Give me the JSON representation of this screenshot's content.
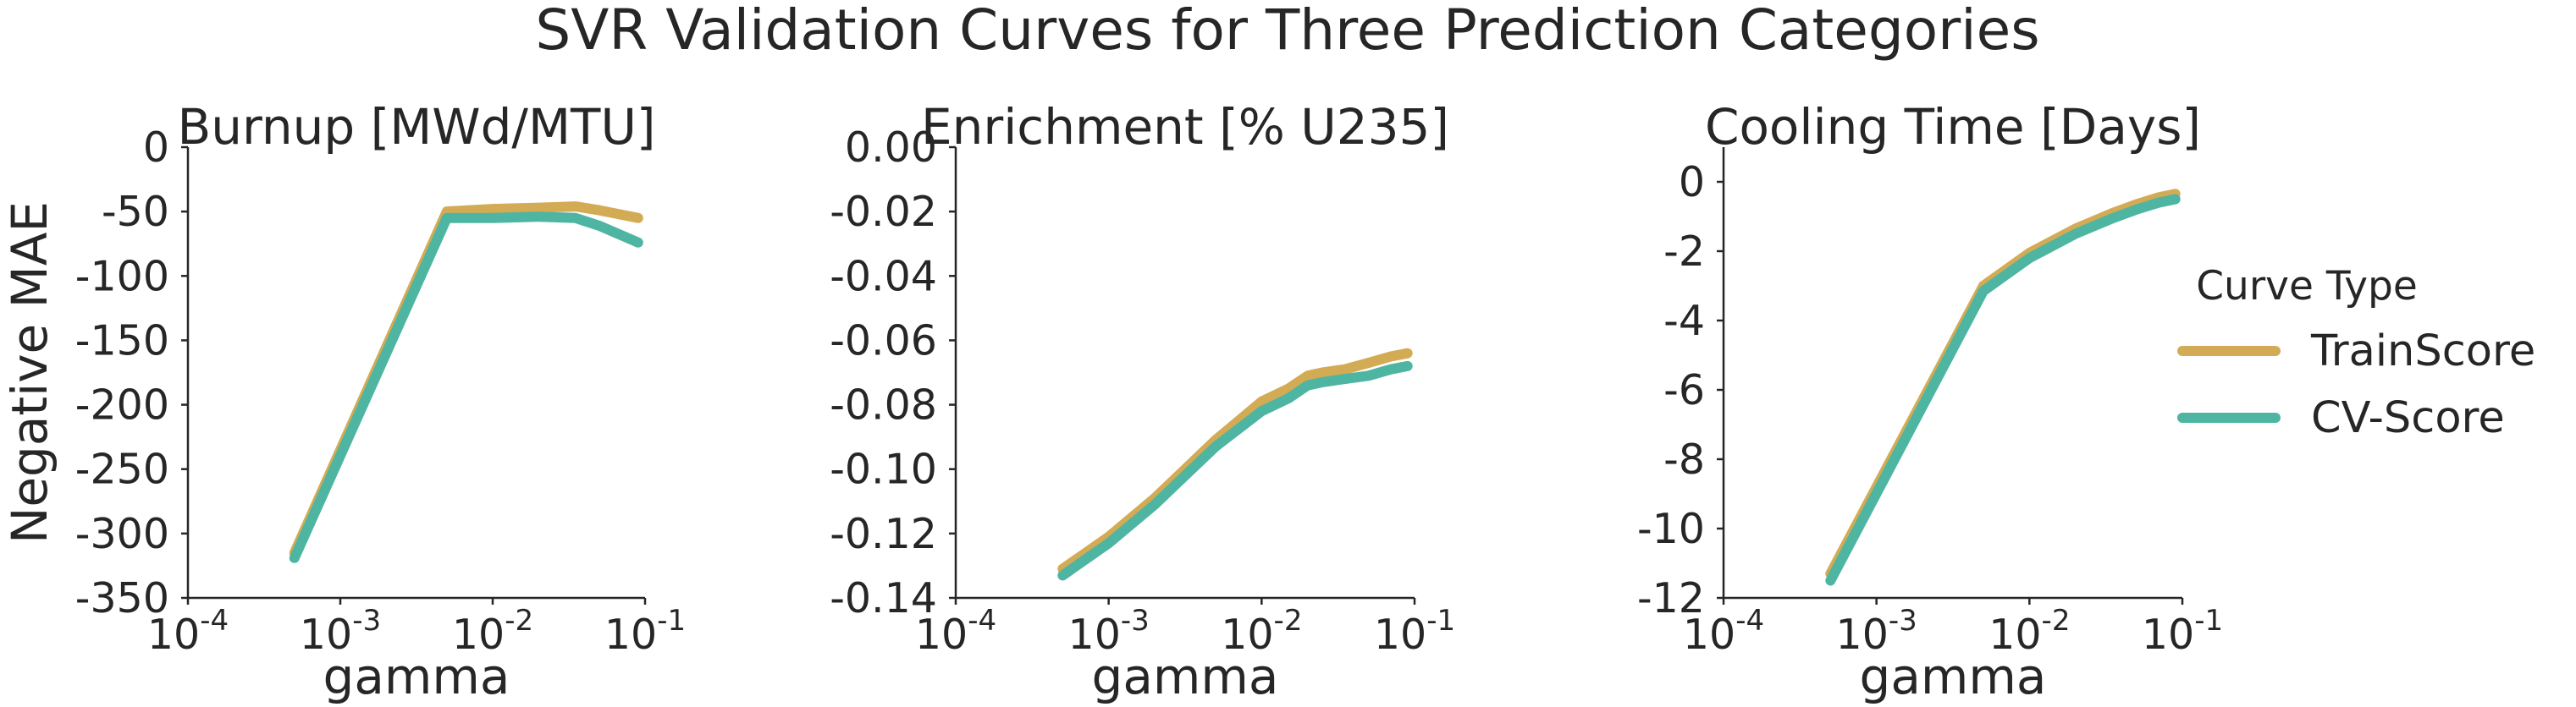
{
  "figure": {
    "title": "SVR Validation Curves for Three Prediction Categories"
  },
  "legend": {
    "title": "Curve Type",
    "entries": [
      {
        "label": "TrainScore",
        "color": "#d4ab55"
      },
      {
        "label": "CV-Score",
        "color": "#4eb5a2"
      }
    ]
  },
  "chart_data": [
    {
      "type": "line",
      "title": "Burnup [MWd/MTU]",
      "xlabel": "gamma",
      "ylabel": "Negative MAE",
      "xscale": "log",
      "xlim": [
        0.0001,
        0.1
      ],
      "ylim": [
        -350,
        0
      ],
      "xticks": [
        {
          "v": 0.0001,
          "base": "10",
          "exp": "-4"
        },
        {
          "v": 0.001,
          "base": "10",
          "exp": "-3"
        },
        {
          "v": 0.01,
          "base": "10",
          "exp": "-2"
        },
        {
          "v": 0.1,
          "base": "10",
          "exp": "-1"
        }
      ],
      "yticks": [
        {
          "v": 0,
          "label": "0"
        },
        {
          "v": -50,
          "label": "-50"
        },
        {
          "v": -100,
          "label": "-100"
        },
        {
          "v": -150,
          "label": "-150"
        },
        {
          "v": -200,
          "label": "-200"
        },
        {
          "v": -250,
          "label": "-250"
        },
        {
          "v": -300,
          "label": "-300"
        },
        {
          "v": -350,
          "label": "-350"
        }
      ],
      "grid": false,
      "series": [
        {
          "name": "TrainScore",
          "color": "#d4ab55",
          "x": [
            0.0005,
            0.005,
            0.01,
            0.02,
            0.035,
            0.05,
            0.09
          ],
          "y": [
            -315,
            -50,
            -48,
            -47,
            -46,
            -49,
            -55
          ]
        },
        {
          "name": "CV-Score",
          "color": "#4eb5a2",
          "x": [
            0.0005,
            0.005,
            0.01,
            0.02,
            0.035,
            0.05,
            0.09
          ],
          "y": [
            -319,
            -55,
            -55,
            -54,
            -55,
            -61,
            -74
          ]
        }
      ]
    },
    {
      "type": "line",
      "title": "Enrichment [% U235]",
      "xlabel": "gamma",
      "ylabel": "",
      "xscale": "log",
      "xlim": [
        0.0001,
        0.1
      ],
      "ylim": [
        -0.14,
        0.0
      ],
      "xticks": [
        {
          "v": 0.0001,
          "base": "10",
          "exp": "-4"
        },
        {
          "v": 0.001,
          "base": "10",
          "exp": "-3"
        },
        {
          "v": 0.01,
          "base": "10",
          "exp": "-2"
        },
        {
          "v": 0.1,
          "base": "10",
          "exp": "-1"
        }
      ],
      "yticks": [
        {
          "v": 0.0,
          "label": "0.00"
        },
        {
          "v": -0.02,
          "label": "-0.02"
        },
        {
          "v": -0.04,
          "label": "-0.04"
        },
        {
          "v": -0.06,
          "label": "-0.06"
        },
        {
          "v": -0.08,
          "label": "-0.08"
        },
        {
          "v": -0.1,
          "label": "-0.10"
        },
        {
          "v": -0.12,
          "label": "-0.12"
        },
        {
          "v": -0.14,
          "label": "-0.14"
        }
      ],
      "grid": false,
      "series": [
        {
          "name": "TrainScore",
          "color": "#d4ab55",
          "x": [
            0.0005,
            0.001,
            0.002,
            0.005,
            0.01,
            0.015,
            0.02,
            0.025,
            0.035,
            0.05,
            0.07,
            0.09
          ],
          "y": [
            -0.131,
            -0.121,
            -0.109,
            -0.091,
            -0.079,
            -0.075,
            -0.071,
            -0.07,
            -0.069,
            -0.067,
            -0.065,
            -0.064
          ]
        },
        {
          "name": "CV-Score",
          "color": "#4eb5a2",
          "x": [
            0.0005,
            0.001,
            0.002,
            0.005,
            0.01,
            0.015,
            0.02,
            0.025,
            0.035,
            0.05,
            0.07,
            0.09
          ],
          "y": [
            -0.133,
            -0.123,
            -0.111,
            -0.093,
            -0.082,
            -0.078,
            -0.074,
            -0.073,
            -0.072,
            -0.071,
            -0.069,
            -0.068
          ]
        }
      ]
    },
    {
      "type": "line",
      "title": "Cooling Time [Days]",
      "xlabel": "gamma",
      "ylabel": "",
      "xscale": "log",
      "xlim": [
        0.0001,
        0.1
      ],
      "ylim": [
        -12,
        1
      ],
      "xticks": [
        {
          "v": 0.0001,
          "base": "10",
          "exp": "-4"
        },
        {
          "v": 0.001,
          "base": "10",
          "exp": "-3"
        },
        {
          "v": 0.01,
          "base": "10",
          "exp": "-2"
        },
        {
          "v": 0.1,
          "base": "10",
          "exp": "-1"
        }
      ],
      "yticks": [
        {
          "v": 0,
          "label": "0"
        },
        {
          "v": -2,
          "label": "-2"
        },
        {
          "v": -4,
          "label": "-4"
        },
        {
          "v": -6,
          "label": "-6"
        },
        {
          "v": -8,
          "label": "-8"
        },
        {
          "v": -10,
          "label": "-10"
        },
        {
          "v": -12,
          "label": "-12"
        }
      ],
      "grid": false,
      "series": [
        {
          "name": "TrainScore",
          "color": "#d4ab55",
          "x": [
            0.0005,
            0.005,
            0.01,
            0.02,
            0.035,
            0.05,
            0.07,
            0.09
          ],
          "y": [
            -11.3,
            -3.0,
            -2.05,
            -1.35,
            -0.9,
            -0.65,
            -0.45,
            -0.35
          ]
        },
        {
          "name": "CV-Score",
          "color": "#4eb5a2",
          "x": [
            0.0005,
            0.005,
            0.01,
            0.02,
            0.035,
            0.05,
            0.07,
            0.09
          ],
          "y": [
            -11.5,
            -3.15,
            -2.2,
            -1.5,
            -1.05,
            -0.8,
            -0.6,
            -0.5
          ]
        }
      ]
    }
  ]
}
